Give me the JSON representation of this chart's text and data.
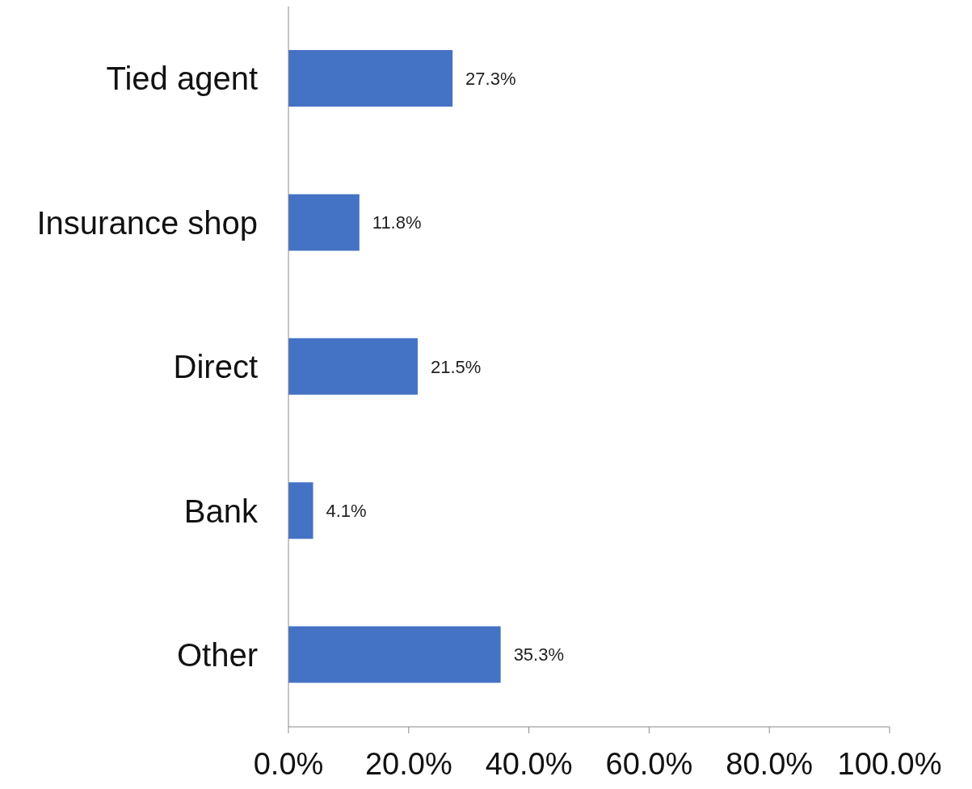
{
  "chart_data": {
    "type": "bar",
    "orientation": "horizontal",
    "categories": [
      "Tied agent",
      "Insurance shop",
      "Direct",
      "Bank",
      "Other"
    ],
    "values": [
      27.3,
      11.8,
      21.5,
      4.1,
      35.3
    ],
    "value_labels": [
      "27.3%",
      "11.8%",
      "21.5%",
      "4.1%",
      "35.3%"
    ],
    "color": "#4472c4",
    "xlim": [
      0,
      100
    ],
    "xticks": [
      {
        "value": 0,
        "label": "0.0%"
      },
      {
        "value": 20,
        "label": "20.0%"
      },
      {
        "value": 40,
        "label": "40.0%"
      },
      {
        "value": 60,
        "label": "60.0%"
      },
      {
        "value": 80,
        "label": "80.0%"
      },
      {
        "value": 100,
        "label": "100.0%"
      }
    ]
  }
}
